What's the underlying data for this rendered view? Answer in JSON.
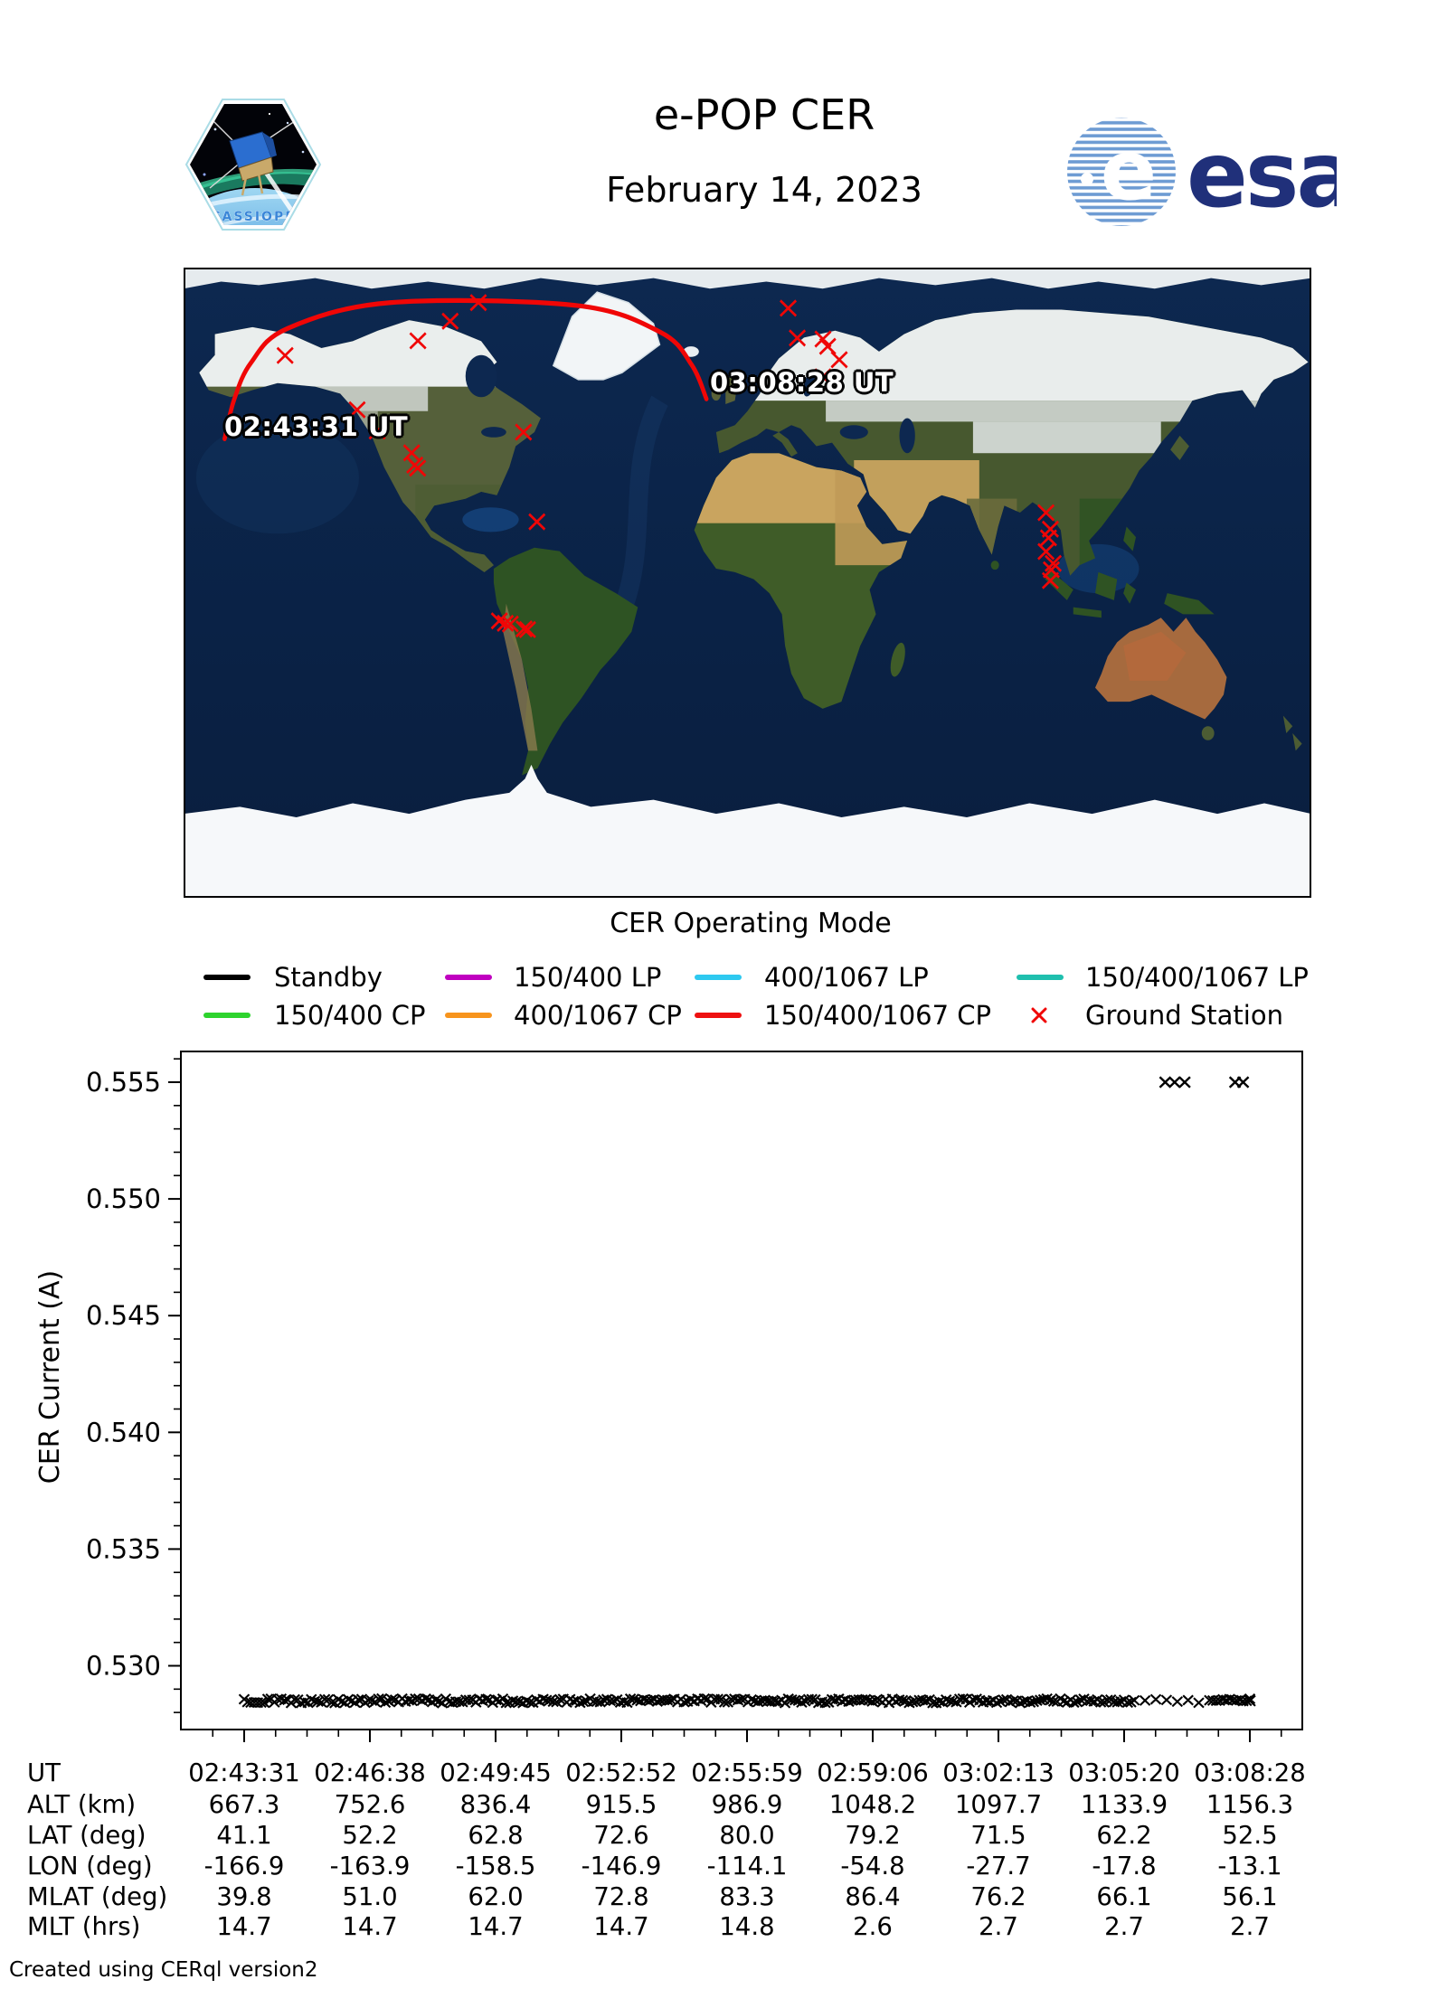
{
  "header": {
    "title": "e-POP CER",
    "subtitle": "February 14, 2023",
    "esa_wordmark": "esa",
    "patch_text": "CASSIOPE"
  },
  "map": {
    "start_label": "02:43:31 UT",
    "end_label": "03:08:28 UT",
    "track_color": "#f00606",
    "station_color": "#f00606",
    "track_lonlat": [
      [
        -166.9,
        41.1
      ],
      [
        -163.9,
        52.2
      ],
      [
        -158.5,
        62.8
      ],
      [
        -146.9,
        72.6
      ],
      [
        -114.1,
        80.0
      ],
      [
        -54.8,
        79.2
      ],
      [
        -27.7,
        71.5
      ],
      [
        -17.8,
        62.2
      ],
      [
        -13.1,
        52.5
      ]
    ],
    "stations_lonlat": [
      [
        -147.6,
        64.9
      ],
      [
        -105.2,
        69.1
      ],
      [
        -94.9,
        74.7
      ],
      [
        -85.9,
        80.0
      ],
      [
        -124.6,
        49.4
      ],
      [
        -118.2,
        43.3
      ],
      [
        -107.2,
        37.1
      ],
      [
        -106.2,
        33.6
      ],
      [
        -105.3,
        32.7
      ],
      [
        -71.5,
        43.0
      ],
      [
        -67.2,
        17.4
      ],
      [
        -79.2,
        -10.9
      ],
      [
        -77.3,
        -11.6
      ],
      [
        -75.7,
        -11.8
      ],
      [
        -71.3,
        -13.2
      ],
      [
        -70.2,
        -13.4
      ],
      [
        13.0,
        78.4
      ],
      [
        15.9,
        69.9
      ],
      [
        24.1,
        69.6
      ],
      [
        25.6,
        67.5
      ],
      [
        29.3,
        63.7
      ],
      [
        24.1,
        58.8
      ],
      [
        95.3,
        20.0
      ],
      [
        96.7,
        15.3
      ],
      [
        96.1,
        12.8
      ],
      [
        95.3,
        8.9
      ],
      [
        97.6,
        5.5
      ],
      [
        97.0,
        3.7
      ],
      [
        96.7,
        0.6
      ]
    ]
  },
  "legend": {
    "title": "CER Operating Mode",
    "items": [
      {
        "label": "Standby",
        "color": "#000000",
        "type": "line"
      },
      {
        "label": "150/400 LP",
        "color": "#c000c0",
        "type": "line"
      },
      {
        "label": "400/1067 LP",
        "color": "#2ec9f0",
        "type": "line"
      },
      {
        "label": "150/400/1067 LP",
        "color": "#1fbfae",
        "type": "line"
      },
      {
        "label": "150/400 CP",
        "color": "#2ed32e",
        "type": "line"
      },
      {
        "label": "400/1067 CP",
        "color": "#f7941d",
        "type": "line"
      },
      {
        "label": "150/400/1067 CP",
        "color": "#ee1111",
        "type": "line"
      },
      {
        "label": "Ground Station",
        "color": "#f00606",
        "type": "x"
      }
    ]
  },
  "chart_data": {
    "type": "scatter",
    "marker": "x",
    "marker_color": "#000000",
    "ylabel": "CER Current (A)",
    "yticks": [
      0.53,
      0.535,
      0.54,
      0.545,
      0.55,
      0.555
    ],
    "y_minor_step": 0.001,
    "ylim": [
      0.5273,
      0.5563
    ],
    "x_ticks_ut": [
      "02:43:31",
      "02:46:38",
      "02:49:45",
      "02:52:52",
      "02:55:59",
      "02:59:06",
      "03:02:13",
      "03:05:20",
      "03:08:28"
    ],
    "series": [
      {
        "name": "Standby current band",
        "mode": "Standby",
        "current_A": 0.5285,
        "start_ut": "02:43:31",
        "end_ut": "03:08:28",
        "style": "dense-x-band",
        "sparse_ut_range": [
          "03:05:31",
          "03:07:26"
        ]
      },
      {
        "name": "High excursions",
        "current_A": 0.555,
        "times_ut": [
          "03:06:22",
          "03:06:36",
          "03:06:51",
          "03:08:06",
          "03:08:18"
        ]
      }
    ]
  },
  "table": {
    "rows": [
      {
        "label": "UT",
        "values": [
          "02:43:31",
          "02:46:38",
          "02:49:45",
          "02:52:52",
          "02:55:59",
          "02:59:06",
          "03:02:13",
          "03:05:20",
          "03:08:28"
        ]
      },
      {
        "label": "ALT (km)",
        "values": [
          "667.3",
          "752.6",
          "836.4",
          "915.5",
          "986.9",
          "1048.2",
          "1097.7",
          "1133.9",
          "1156.3"
        ]
      },
      {
        "label": "LAT (deg)",
        "values": [
          "41.1",
          "52.2",
          "62.8",
          "72.6",
          "80.0",
          "79.2",
          "71.5",
          "62.2",
          "52.5"
        ]
      },
      {
        "label": "LON (deg)",
        "values": [
          "-166.9",
          "-163.9",
          "-158.5",
          "-146.9",
          "-114.1",
          "-54.8",
          "-27.7",
          "-17.8",
          "-13.1"
        ]
      },
      {
        "label": "MLAT (deg)",
        "values": [
          "39.8",
          "51.0",
          "62.0",
          "72.8",
          "83.3",
          "86.4",
          "76.2",
          "66.1",
          "56.1"
        ]
      },
      {
        "label": "MLT (hrs)",
        "values": [
          "14.7",
          "14.7",
          "14.7",
          "14.7",
          "14.8",
          "2.6",
          "2.7",
          "2.7",
          "2.7"
        ]
      }
    ]
  },
  "footer": {
    "credit": "Created using CERql version2"
  }
}
